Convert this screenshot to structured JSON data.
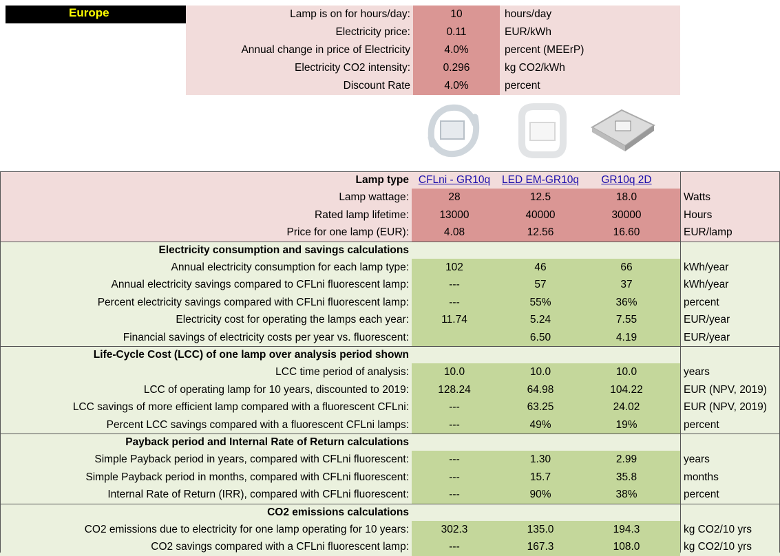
{
  "region": "Europe",
  "parameters": [
    {
      "label": "Lamp is on for hours/day:",
      "value": "10",
      "unit": "hours/day"
    },
    {
      "label": "Electricity price:",
      "value": "0.11",
      "unit": "EUR/kWh"
    },
    {
      "label": "Annual change in price of Electricity",
      "value": "4.0%",
      "unit": "percent (MEErP)"
    },
    {
      "label": "Electricity CO2 intensity:",
      "value": "0.296",
      "unit": "kg CO2/kWh"
    },
    {
      "label": "Discount Rate",
      "value": "4.0%",
      "unit": "percent"
    }
  ],
  "lamp_table": {
    "header": "Lamp type",
    "lamps": [
      "CFLni - GR10q",
      "LED EM-GR10q",
      "GR10q 2D"
    ],
    "rows": [
      {
        "label": "Lamp wattage:",
        "values": [
          "28",
          "12.5",
          "18.0"
        ],
        "unit": "Watts"
      },
      {
        "label": "Rated lamp lifetime:",
        "values": [
          "13000",
          "40000",
          "30000"
        ],
        "unit": "Hours"
      },
      {
        "label": "Price for one lamp (EUR):",
        "values": [
          "4.08",
          "12.56",
          "16.60"
        ],
        "unit": "EUR/lamp"
      }
    ]
  },
  "sections": [
    {
      "title": "Electricity consumption and savings calculations",
      "rows": [
        {
          "label": "Annual electricity consumption for each lamp type:",
          "values": [
            "102",
            "46",
            "66"
          ],
          "unit": "kWh/year"
        },
        {
          "label": "Annual electricity savings compared to CFLni fluorescent lamp:",
          "values": [
            "---",
            "57",
            "37"
          ],
          "unit": "kWh/year"
        },
        {
          "label": "Percent electricity savings compared with CFLni fluorescent lamp:",
          "values": [
            "---",
            "55%",
            "36%"
          ],
          "unit": "percent"
        },
        {
          "label": "Electricity cost for operating the lamps each year:",
          "values": [
            "11.74",
            "5.24",
            "7.55"
          ],
          "unit": "EUR/year"
        },
        {
          "label": "Financial savings of electricity costs per year vs. fluorescent:",
          "values": [
            null,
            "6.50",
            "4.19"
          ],
          "unit": "EUR/year"
        }
      ]
    },
    {
      "title": "Life-Cycle Cost (LCC) of one lamp over analysis period shown",
      "rows": [
        {
          "label": "LCC time period of analysis:",
          "values": [
            "10.0",
            "10.0",
            "10.0"
          ],
          "unit": "years"
        },
        {
          "label": "LCC of operating lamp for 10 years, discounted to 2019:",
          "values": [
            "128.24",
            "64.98",
            "104.22"
          ],
          "unit": "EUR (NPV, 2019)"
        },
        {
          "label": "LCC savings of more efficient lamp compared with a fluorescent CFLni:",
          "values": [
            "---",
            "63.25",
            "24.02"
          ],
          "unit": "EUR (NPV, 2019)"
        },
        {
          "label": "Percent LCC savings compared with a fluorescent CFLni lamps:",
          "values": [
            "---",
            "49%",
            "19%"
          ],
          "unit": "percent"
        }
      ]
    },
    {
      "title": "Payback period and Internal Rate of Return calculations",
      "rows": [
        {
          "label": "Simple Payback period in years, compared with CFLni fluorescent:",
          "values": [
            "---",
            "1.30",
            "2.99"
          ],
          "unit": "years"
        },
        {
          "label": "Simple Payback period in months, compared with CFLni fluorescent:",
          "values": [
            "---",
            "15.7",
            "35.8"
          ],
          "unit": "months"
        },
        {
          "label": "Internal Rate of Return (IRR), compared with CFLni fluorescent:",
          "values": [
            "---",
            "90%",
            "38%"
          ],
          "unit": "percent"
        }
      ]
    },
    {
      "title": "CO2 emissions calculations",
      "rows": [
        {
          "label": "CO2 emissions due to electricity for one lamp operating for 10 years:",
          "values": [
            "302.3",
            "135.0",
            "194.3"
          ],
          "unit": "kg CO2/10 yrs"
        },
        {
          "label": "CO2 savings compared with a CFLni fluorescent lamp:",
          "values": [
            "---",
            "167.3",
            "108.0"
          ],
          "unit": "kg CO2/10 yrs"
        }
      ]
    }
  ]
}
